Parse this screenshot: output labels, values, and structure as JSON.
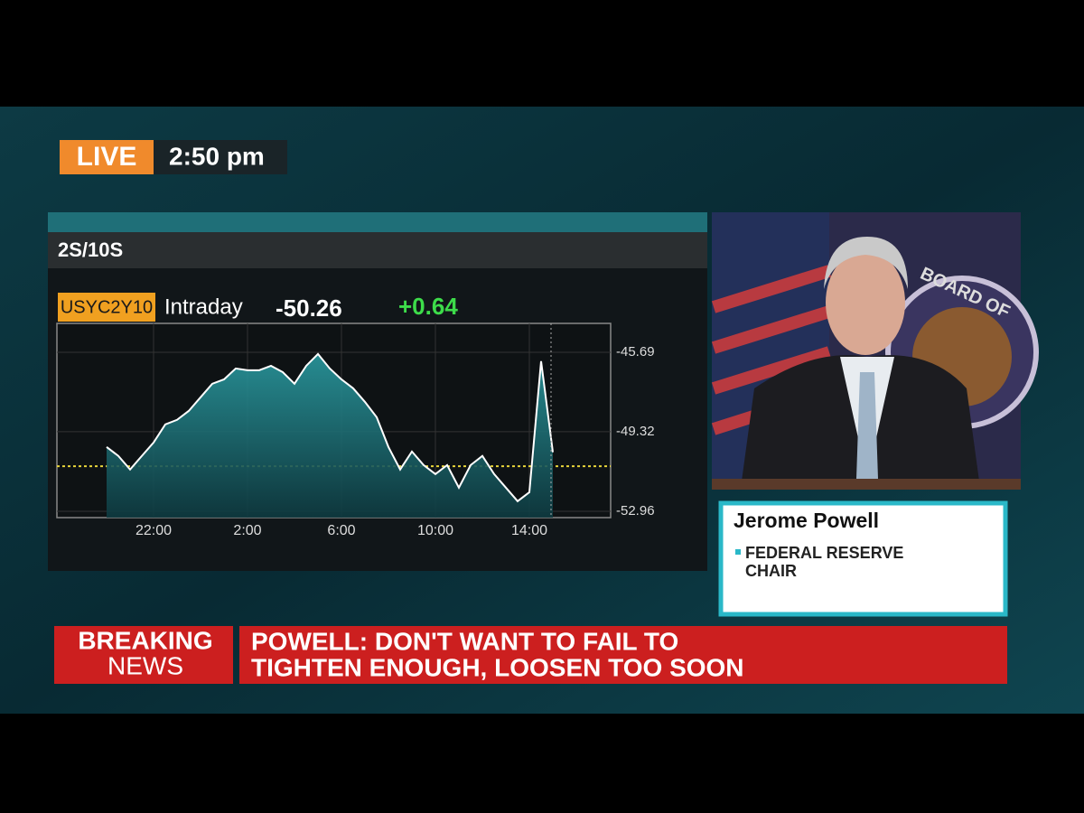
{
  "header": {
    "live": "LIVE",
    "time": "2:50 pm"
  },
  "chart_data": {
    "type": "line",
    "title": "2S/10S",
    "ticker": "USYC2Y10",
    "period": "Intraday",
    "last": -50.26,
    "change": "+0.64",
    "categories": [
      null,
      null,
      null,
      null,
      "22:00",
      null,
      null,
      null,
      null,
      null,
      null,
      null,
      "2:00",
      null,
      null,
      null,
      null,
      null,
      null,
      null,
      "6:00",
      null,
      null,
      null,
      null,
      null,
      null,
      null,
      "10:00",
      null,
      null,
      null,
      null,
      null,
      null,
      null,
      "14:00",
      null,
      null
    ],
    "series": [
      {
        "color": "#ffffff",
        "values": [
          -50.02,
          -50.43,
          -51.05,
          -50.43,
          -49.82,
          -48.99,
          -48.78,
          -48.37,
          -47.75,
          -47.13,
          -46.93,
          -46.43,
          -46.51,
          -46.51,
          -46.31,
          -46.6,
          -47.13,
          -46.31,
          -45.77,
          -46.43,
          -46.93,
          -47.34,
          -47.96,
          -48.66,
          -50.02,
          -51.05,
          -50.23,
          -50.85,
          -51.26,
          -50.85,
          -51.88,
          -50.85,
          -50.43,
          -51.26,
          -51.88,
          -52.5,
          -52.09,
          -46.1,
          -50.26
        ]
      }
    ],
    "ylim": [
      -53.25,
      -44.37
    ],
    "yticks": [
      -45.69,
      -49.32,
      -52.96
    ],
    "reference_line": -50.9,
    "grid": true
  },
  "photo": {
    "seal_text": "BOARD OF"
  },
  "lower_third": {
    "name": "Jerome Powell",
    "role_lines": [
      "FEDERAL RESERVE",
      "CHAIR"
    ]
  },
  "breaking": {
    "label_lines": [
      "BREAKING",
      "NEWS"
    ],
    "headline_lines": [
      "POWELL: DON'T WANT TO FAIL TO",
      "TIGHTEN ENOUGH, LOOSEN TOO SOON"
    ]
  }
}
